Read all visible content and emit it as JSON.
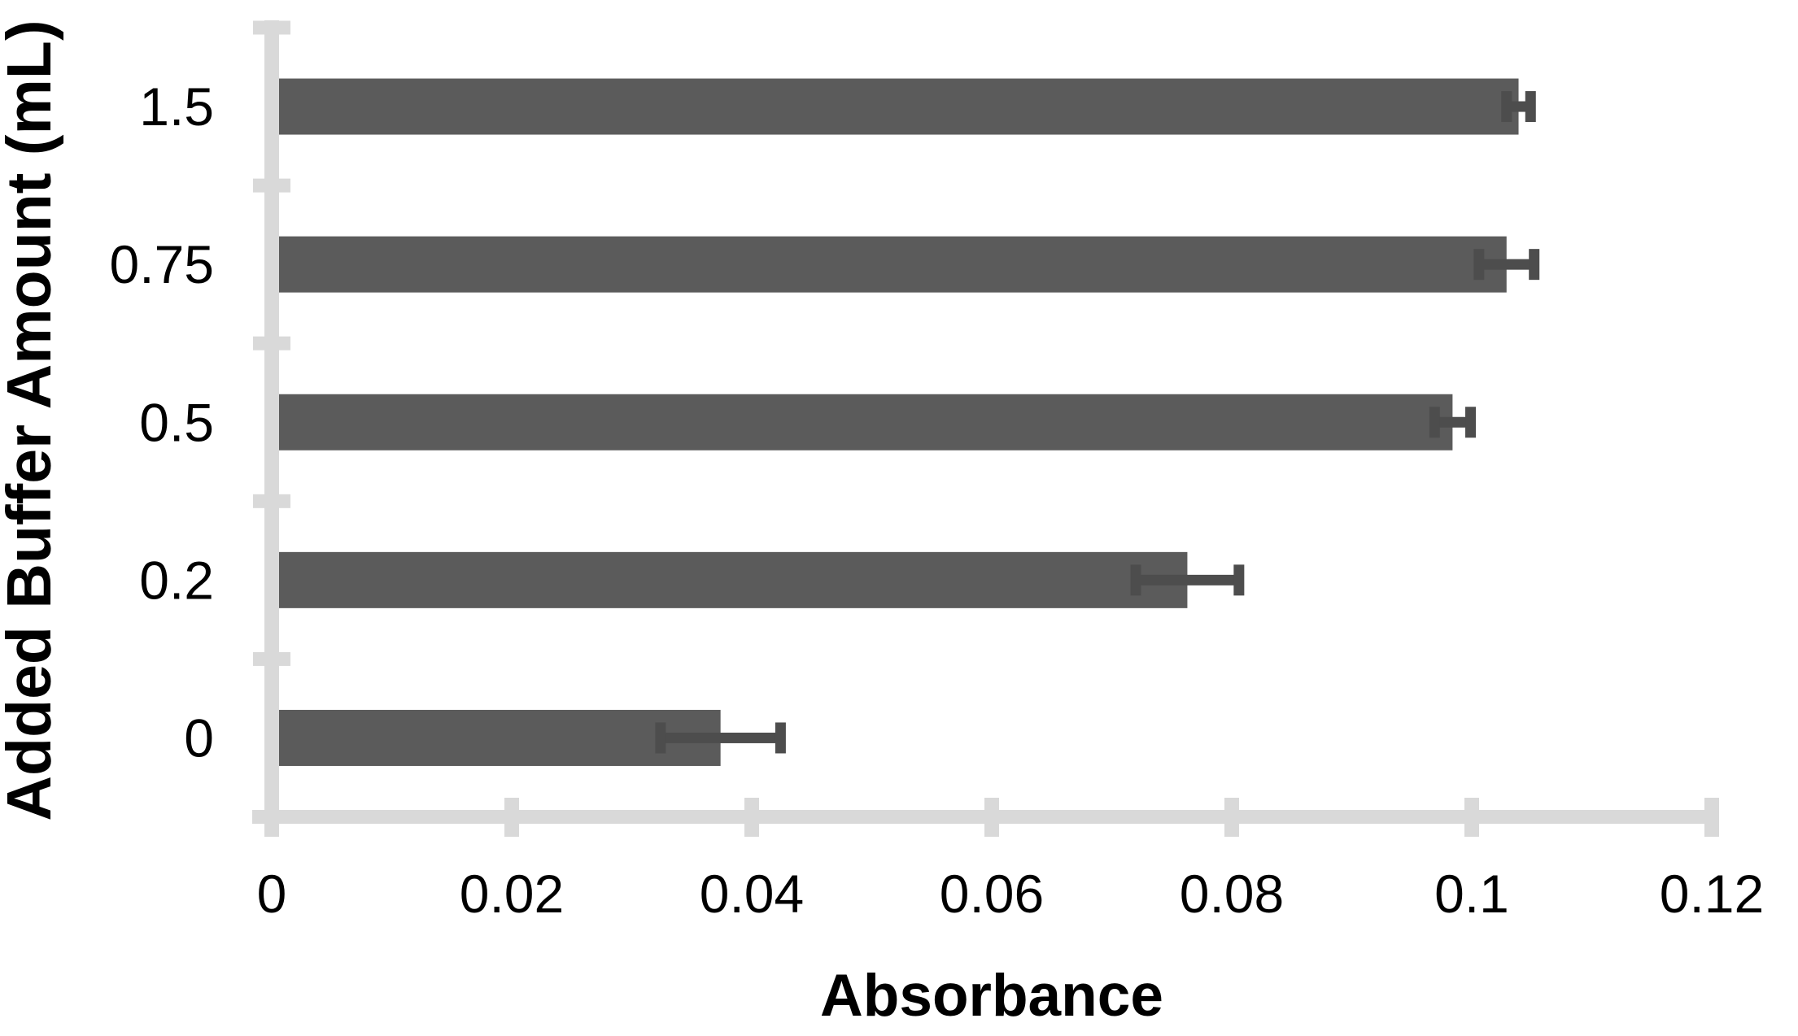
{
  "chart_data": {
    "type": "bar",
    "orientation": "horizontal",
    "title": "",
    "xlabel": "Absorbance",
    "ylabel": "Added Buffer Amount (mL)",
    "categories": [
      "1.5",
      "0.75",
      "0.5",
      "0.2",
      "0"
    ],
    "series": [
      {
        "name": "Absorbance",
        "values": [
          0.1039,
          0.1029,
          0.0984,
          0.0763,
          0.0374
        ],
        "errors": [
          0.001,
          0.0023,
          0.0015,
          0.0043,
          0.005
        ]
      }
    ],
    "xlim": [
      0,
      0.12
    ],
    "xticks": [
      0,
      0.02,
      0.04,
      0.06,
      0.08,
      0.1,
      0.12
    ],
    "xtick_labels": [
      "0",
      "0.02",
      "0.04",
      "0.06",
      "0.08",
      "0.1",
      "0.12"
    ],
    "grid": false,
    "legend": "none",
    "colors": {
      "bar": "#5B5B5B",
      "error_bar": "#4D4D4D",
      "axis": "#D9D9D9",
      "text": "#000000",
      "background": "#FFFFFF"
    }
  }
}
